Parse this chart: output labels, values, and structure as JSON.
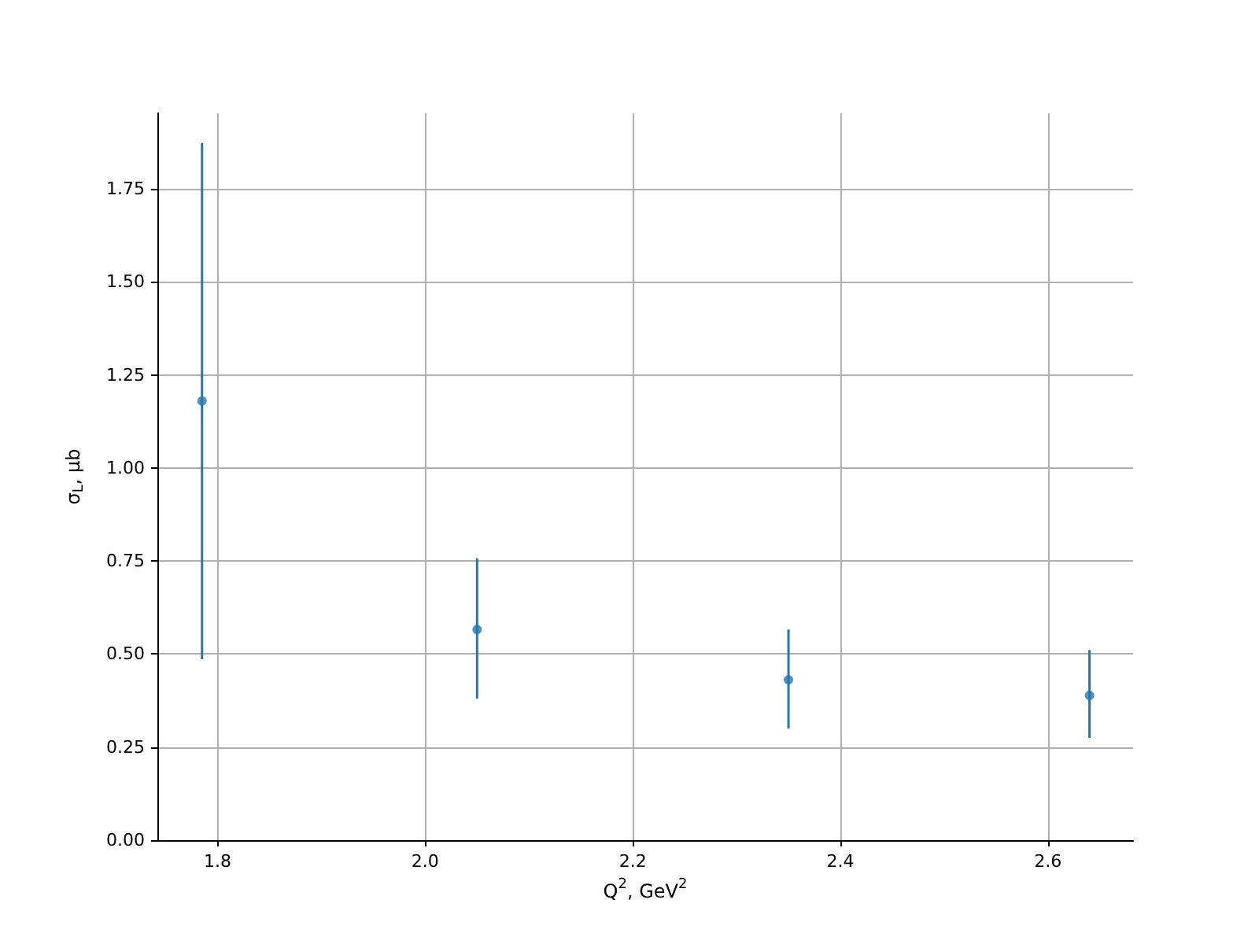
{
  "chart_data": {
    "type": "scatter",
    "xlabel": "Q$^{2}$, GeV$^{2}$",
    "ylabel": "σ$_{L}$, μb",
    "x": [
      1.785,
      2.05,
      2.35,
      2.64
    ],
    "values": [
      1.18,
      0.566,
      0.431,
      0.389
    ],
    "errors": [
      [
        0.486,
        1.873
      ],
      [
        0.38,
        0.757
      ],
      [
        0.3,
        0.566
      ],
      [
        0.275,
        0.511
      ]
    ],
    "color": "#1f77b4",
    "marker": "circle",
    "grid": true,
    "xlim": [
      1.742,
      2.682
    ],
    "xticks": [
      {
        "value": 1.8,
        "label": "1.8"
      },
      {
        "value": 2.0,
        "label": "2.0"
      },
      {
        "value": 2.2,
        "label": "2.2"
      },
      {
        "value": 2.4,
        "label": "2.4"
      },
      {
        "value": 2.6,
        "label": "2.6"
      }
    ],
    "ylim": [
      0,
      1.953
    ],
    "yticks": [
      {
        "value": 0,
        "label": "0.00"
      },
      {
        "value": 0.25,
        "label": "0.25"
      },
      {
        "value": 0.5,
        "label": "0.50"
      },
      {
        "value": 0.75,
        "label": "0.75"
      },
      {
        "value": 1,
        "label": "1.00"
      },
      {
        "value": 1.25,
        "label": "1.25"
      },
      {
        "value": 1.5,
        "label": "1.50"
      },
      {
        "value": 1.75,
        "label": "1.75"
      }
    ]
  }
}
